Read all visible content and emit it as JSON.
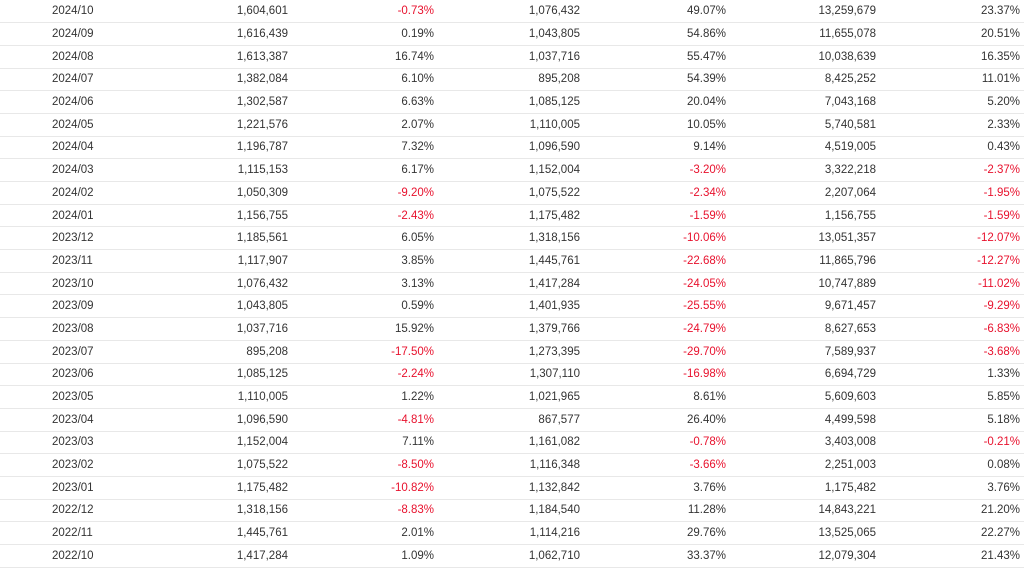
{
  "rows": [
    [
      "2024/10",
      "1,604,601",
      "-0.73%",
      "1,076,432",
      "49.07%",
      "13,259,679",
      "23.37%"
    ],
    [
      "2024/09",
      "1,616,439",
      "0.19%",
      "1,043,805",
      "54.86%",
      "11,655,078",
      "20.51%"
    ],
    [
      "2024/08",
      "1,613,387",
      "16.74%",
      "1,037,716",
      "55.47%",
      "10,038,639",
      "16.35%"
    ],
    [
      "2024/07",
      "1,382,084",
      "6.10%",
      "895,208",
      "54.39%",
      "8,425,252",
      "11.01%"
    ],
    [
      "2024/06",
      "1,302,587",
      "6.63%",
      "1,085,125",
      "20.04%",
      "7,043,168",
      "5.20%"
    ],
    [
      "2024/05",
      "1,221,576",
      "2.07%",
      "1,110,005",
      "10.05%",
      "5,740,581",
      "2.33%"
    ],
    [
      "2024/04",
      "1,196,787",
      "7.32%",
      "1,096,590",
      "9.14%",
      "4,519,005",
      "0.43%"
    ],
    [
      "2024/03",
      "1,115,153",
      "6.17%",
      "1,152,004",
      "-3.20%",
      "3,322,218",
      "-2.37%"
    ],
    [
      "2024/02",
      "1,050,309",
      "-9.20%",
      "1,075,522",
      "-2.34%",
      "2,207,064",
      "-1.95%"
    ],
    [
      "2024/01",
      "1,156,755",
      "-2.43%",
      "1,175,482",
      "-1.59%",
      "1,156,755",
      "-1.59%"
    ],
    [
      "2023/12",
      "1,185,561",
      "6.05%",
      "1,318,156",
      "-10.06%",
      "13,051,357",
      "-12.07%"
    ],
    [
      "2023/11",
      "1,117,907",
      "3.85%",
      "1,445,761",
      "-22.68%",
      "11,865,796",
      "-12.27%"
    ],
    [
      "2023/10",
      "1,076,432",
      "3.13%",
      "1,417,284",
      "-24.05%",
      "10,747,889",
      "-11.02%"
    ],
    [
      "2023/09",
      "1,043,805",
      "0.59%",
      "1,401,935",
      "-25.55%",
      "9,671,457",
      "-9.29%"
    ],
    [
      "2023/08",
      "1,037,716",
      "15.92%",
      "1,379,766",
      "-24.79%",
      "8,627,653",
      "-6.83%"
    ],
    [
      "2023/07",
      "895,208",
      "-17.50%",
      "1,273,395",
      "-29.70%",
      "7,589,937",
      "-3.68%"
    ],
    [
      "2023/06",
      "1,085,125",
      "-2.24%",
      "1,307,110",
      "-16.98%",
      "6,694,729",
      "1.33%"
    ],
    [
      "2023/05",
      "1,110,005",
      "1.22%",
      "1,021,965",
      "8.61%",
      "5,609,603",
      "5.85%"
    ],
    [
      "2023/04",
      "1,096,590",
      "-4.81%",
      "867,577",
      "26.40%",
      "4,499,598",
      "5.18%"
    ],
    [
      "2023/03",
      "1,152,004",
      "7.11%",
      "1,161,082",
      "-0.78%",
      "3,403,008",
      "-0.21%"
    ],
    [
      "2023/02",
      "1,075,522",
      "-8.50%",
      "1,116,348",
      "-3.66%",
      "2,251,003",
      "0.08%"
    ],
    [
      "2023/01",
      "1,175,482",
      "-10.82%",
      "1,132,842",
      "3.76%",
      "1,175,482",
      "3.76%"
    ],
    [
      "2022/12",
      "1,318,156",
      "-8.83%",
      "1,184,540",
      "11.28%",
      "14,843,221",
      "21.20%"
    ],
    [
      "2022/11",
      "1,445,761",
      "2.01%",
      "1,114,216",
      "29.76%",
      "13,525,065",
      "22.27%"
    ],
    [
      "2022/10",
      "1,417,284",
      "1.09%",
      "1,062,710",
      "33.37%",
      "12,079,304",
      "21.43%"
    ]
  ],
  "colors": {
    "text": "#333333",
    "negative": "#e8112d",
    "row_border": "#e8e8e8"
  }
}
